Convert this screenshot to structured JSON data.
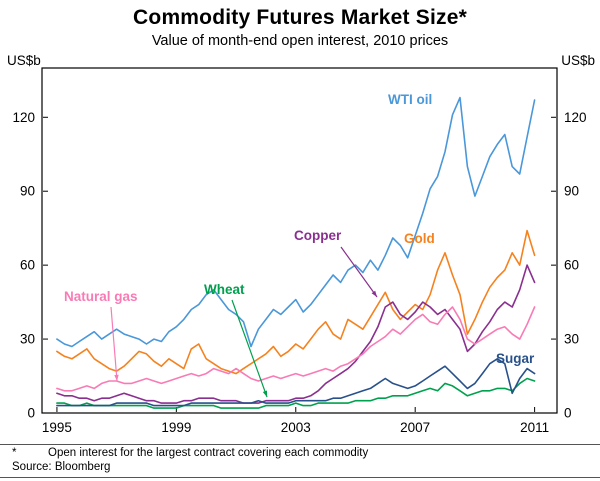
{
  "title": "Commodity Futures Market Size*",
  "subtitle": "Value of month-end open interest, 2010 prices",
  "y_axis_unit_left": "US$b",
  "y_axis_unit_right": "US$b",
  "footnote_marker": "*",
  "footnote_text": "Open interest for the largest contract covering each commodity",
  "source": "Source: Bloomberg",
  "chart_data": {
    "type": "line",
    "title": "Commodity Futures Market Size*",
    "subtitle": "Value of month-end open interest, 2010 prices",
    "xlabel": "",
    "ylabel": "US$b",
    "ylim": [
      0,
      140
    ],
    "yticks": [
      0,
      30,
      60,
      90,
      120
    ],
    "xlim": [
      1994.5,
      2011.75
    ],
    "xticks": [
      1995,
      1999,
      2003,
      2007,
      2011
    ],
    "grid": false,
    "legend_position": "inline-labels",
    "x_unit": "year",
    "x_frequency": "quarterly",
    "x_start": 1995.0,
    "x_step": 0.25,
    "series": [
      {
        "name": "WTI oil",
        "color": "#4a97d9",
        "values": [
          30,
          28,
          27,
          29,
          31,
          33,
          30,
          32,
          34,
          32,
          31,
          30,
          28,
          30,
          29,
          33,
          35,
          38,
          42,
          44,
          48,
          50,
          46,
          42,
          40,
          37,
          27,
          34,
          38,
          42,
          40,
          43,
          46,
          41,
          44,
          48,
          52,
          56,
          53,
          58,
          60,
          57,
          62,
          58,
          64,
          71,
          68,
          63,
          72,
          81,
          91,
          96,
          106,
          121,
          128,
          100,
          88,
          96,
          104,
          109,
          113,
          100,
          97,
          112,
          127
        ]
      },
      {
        "name": "Gold",
        "color": "#f5821f",
        "values": [
          25,
          23,
          22,
          24,
          26,
          22,
          20,
          18,
          17,
          19,
          22,
          25,
          24,
          21,
          19,
          22,
          20,
          18,
          26,
          28,
          22,
          20,
          18,
          17,
          16,
          18,
          20,
          22,
          24,
          27,
          23,
          25,
          28,
          26,
          30,
          34,
          37,
          32,
          30,
          38,
          36,
          34,
          39,
          44,
          49,
          42,
          38,
          41,
          44,
          42,
          48,
          58,
          65,
          56,
          48,
          32,
          38,
          45,
          51,
          55,
          58,
          65,
          60,
          74,
          64
        ]
      },
      {
        "name": "Copper",
        "color": "#8a2f8f",
        "values": [
          8,
          7,
          7,
          6,
          6,
          5,
          6,
          6,
          7,
          8,
          7,
          6,
          5,
          5,
          4,
          4,
          4,
          5,
          5,
          6,
          6,
          6,
          5,
          5,
          5,
          4,
          4,
          4,
          5,
          5,
          5,
          5,
          6,
          6,
          7,
          9,
          12,
          14,
          16,
          18,
          21,
          25,
          29,
          35,
          43,
          45,
          40,
          38,
          41,
          45,
          43,
          40,
          42,
          38,
          34,
          25,
          28,
          33,
          37,
          42,
          45,
          43,
          50,
          60,
          53
        ]
      },
      {
        "name": "Natural gas",
        "color": "#f97bb5",
        "values": [
          10,
          9,
          9,
          10,
          11,
          10,
          12,
          13,
          13,
          12,
          12,
          13,
          14,
          13,
          12,
          13,
          14,
          15,
          16,
          15,
          16,
          18,
          17,
          16,
          18,
          16,
          14,
          13,
          14,
          15,
          14,
          15,
          16,
          15,
          16,
          17,
          18,
          17,
          19,
          20,
          22,
          24,
          27,
          29,
          31,
          34,
          32,
          35,
          38,
          40,
          37,
          36,
          40,
          43,
          38,
          30,
          28,
          30,
          32,
          34,
          35,
          32,
          30,
          36,
          43
        ]
      },
      {
        "name": "Wheat",
        "color": "#00a14e",
        "values": [
          4,
          4,
          3,
          3,
          4,
          3,
          3,
          3,
          3,
          3,
          3,
          3,
          3,
          2,
          2,
          2,
          2,
          3,
          3,
          3,
          3,
          3,
          2,
          2,
          2,
          2,
          2,
          2,
          3,
          3,
          3,
          3,
          4,
          3,
          3,
          4,
          4,
          4,
          4,
          4,
          5,
          5,
          5,
          6,
          6,
          7,
          7,
          7,
          8,
          9,
          10,
          9,
          12,
          11,
          9,
          7,
          8,
          9,
          9,
          10,
          10,
          9,
          12,
          14,
          13
        ]
      },
      {
        "name": "Sugar",
        "color": "#28518c",
        "values": [
          3,
          3,
          3,
          3,
          3,
          3,
          3,
          3,
          4,
          4,
          4,
          4,
          4,
          3,
          3,
          3,
          3,
          3,
          4,
          4,
          4,
          4,
          4,
          4,
          4,
          4,
          4,
          5,
          4,
          4,
          4,
          4,
          5,
          5,
          5,
          5,
          5,
          6,
          6,
          7,
          8,
          9,
          10,
          12,
          14,
          12,
          11,
          10,
          11,
          13,
          15,
          17,
          19,
          16,
          13,
          10,
          12,
          16,
          20,
          22,
          20,
          8,
          14,
          18,
          16
        ]
      }
    ]
  }
}
